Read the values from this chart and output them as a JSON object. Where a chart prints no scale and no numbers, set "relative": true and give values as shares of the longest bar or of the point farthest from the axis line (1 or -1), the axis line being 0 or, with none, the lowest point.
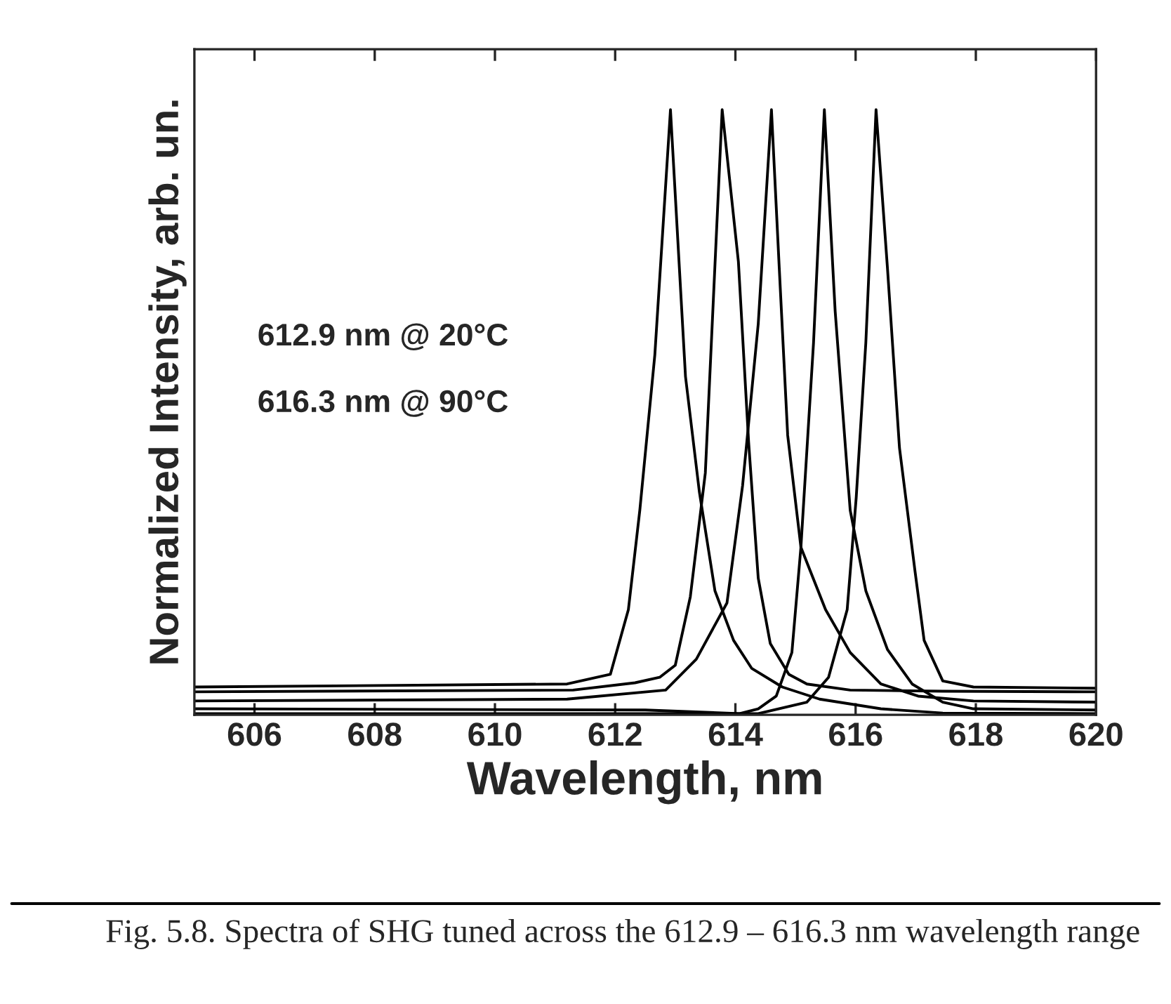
{
  "chart_data": {
    "type": "line",
    "relative": true,
    "xlabel": "Wavelength, nm",
    "ylabel": "Normalized Intensity, arb. un.",
    "xlim": [
      605,
      620
    ],
    "xticks": [
      606,
      608,
      610,
      612,
      614,
      616,
      618,
      620
    ],
    "grid": false,
    "marker": "none",
    "line_style": "solid",
    "tick_labels": "x",
    "annotations": [
      "612.9 nm @ 20°C",
      "616.3 nm @ 90°C",
      "Fig. 5.8. Spectra of SHG tuned across the 612.9 – 616.3 nm wavelength range"
    ],
    "series": [
      {
        "color": "#000000",
        "x": [
          605,
          611.2,
          611.92,
          612.22,
          612.41,
          612.66,
          612.92,
          613.17,
          613.4,
          613.66,
          613.97,
          614.27,
          614.78,
          615.4,
          616.42,
          617.45,
          620
        ],
        "values": [
          0.046,
          0.051,
          0.067,
          0.174,
          0.338,
          0.595,
          1.0,
          0.559,
          0.369,
          0.205,
          0.123,
          0.077,
          0.046,
          0.026,
          0.01,
          0.003,
          0.002
        ]
      },
      {
        "color": "#000000",
        "x": [
          605,
          611.3,
          612.33,
          612.74,
          613.0,
          613.25,
          613.5,
          613.78,
          614.05,
          614.22,
          614.38,
          614.58,
          614.89,
          615.19,
          615.91,
          617.45,
          620
        ],
        "values": [
          0.038,
          0.041,
          0.053,
          0.062,
          0.082,
          0.195,
          0.4,
          1.0,
          0.749,
          0.451,
          0.226,
          0.118,
          0.067,
          0.051,
          0.041,
          0.039,
          0.038
        ]
      },
      {
        "color": "#000000",
        "x": [
          605,
          611.2,
          612.84,
          613.35,
          613.86,
          614.12,
          614.38,
          614.6,
          614.73,
          614.87,
          615.09,
          615.5,
          615.91,
          616.42,
          617.04,
          617.96,
          620
        ],
        "values": [
          0.023,
          0.026,
          0.041,
          0.092,
          0.185,
          0.379,
          0.646,
          1.0,
          0.738,
          0.462,
          0.277,
          0.174,
          0.103,
          0.051,
          0.031,
          0.023,
          0.021
        ]
      },
      {
        "color": "#000000",
        "x": [
          605,
          612.5,
          614.07,
          614.38,
          614.68,
          614.94,
          615.09,
          615.3,
          615.48,
          615.66,
          615.91,
          616.17,
          616.53,
          616.94,
          617.45,
          617.96,
          620
        ],
        "values": [
          0.01,
          0.008,
          0.002,
          0.01,
          0.031,
          0.103,
          0.277,
          0.615,
          1.0,
          0.667,
          0.338,
          0.205,
          0.108,
          0.051,
          0.021,
          0.01,
          0.008
        ]
      },
      {
        "color": "#000000",
        "x": [
          605,
          614.0,
          614.38,
          615.19,
          615.55,
          615.86,
          616.01,
          616.17,
          616.34,
          616.53,
          616.73,
          616.99,
          617.14,
          617.45,
          617.96,
          620
        ],
        "values": [
          0.002,
          0.002,
          0.002,
          0.021,
          0.062,
          0.174,
          0.359,
          0.615,
          1.0,
          0.738,
          0.441,
          0.236,
          0.123,
          0.056,
          0.046,
          0.044
        ]
      }
    ]
  }
}
